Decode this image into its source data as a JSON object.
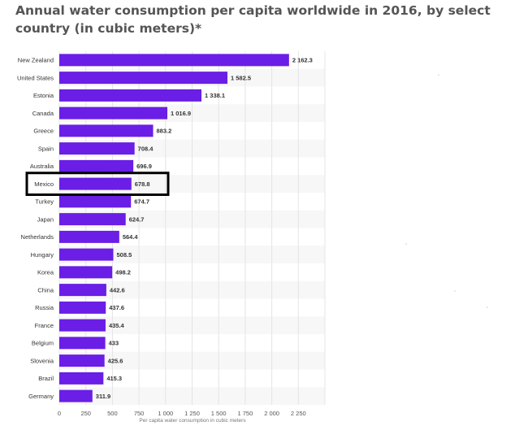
{
  "chart_data": {
    "type": "bar",
    "orientation": "horizontal",
    "title": "Annual water consumption per capita worldwide in 2016, by select country (in cubic meters)*",
    "xlabel": "Per capita water consumption in cubic meters",
    "ylabel": "",
    "xlim": [
      0,
      2500
    ],
    "x_ticks": [
      0,
      250,
      500,
      750,
      1000,
      1250,
      1500,
      1750,
      2000,
      2250
    ],
    "x_tick_labels": [
      "0",
      "250",
      "500",
      "750",
      "1 000",
      "1 250",
      "1 500",
      "1 750",
      "2 000",
      "2 250"
    ],
    "grid": true,
    "categories": [
      "New Zealand",
      "United States",
      "Estonia",
      "Canada",
      "Greece",
      "Spain",
      "Australia",
      "Mexico",
      "Turkey",
      "Japan",
      "Netherlands",
      "Hungary",
      "Korea",
      "China",
      "Russia",
      "France",
      "Belgium",
      "Slovenia",
      "Brazil",
      "Germany"
    ],
    "values": [
      2162.3,
      1582.5,
      1338.1,
      1016.9,
      883.2,
      708.4,
      696.9,
      678.8,
      674.7,
      624.7,
      564.4,
      508.5,
      498.2,
      442.6,
      437.6,
      435.4,
      433,
      425.6,
      415.3,
      311.9
    ],
    "value_labels": [
      "2 162.3",
      "1 582.5",
      "1 338.1",
      "1 016.9",
      "883.2",
      "708.4",
      "696.9",
      "678.8",
      "674.7",
      "624.7",
      "564.4",
      "508.5",
      "498.2",
      "442.6",
      "437.6",
      "435.4",
      "433",
      "425.6",
      "415.3",
      "311.9"
    ],
    "bar_color": "#6a1ee6",
    "highlighted_category": "Mexico"
  }
}
